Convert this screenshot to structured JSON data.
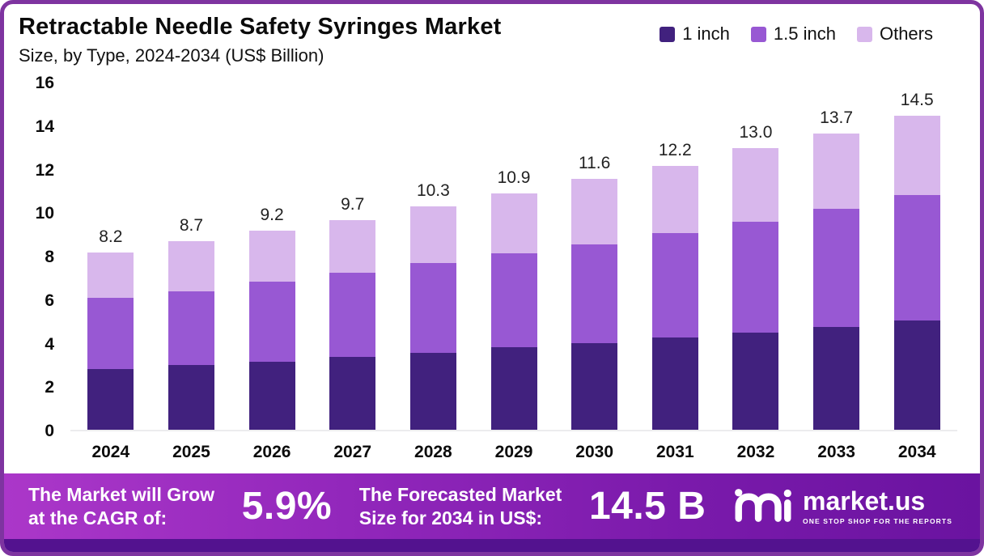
{
  "header": {
    "title": "Retractable Needle Safety Syringes Market",
    "subtitle": "Size, by Type, 2024-2034 (US$ Billion)"
  },
  "chart_data": {
    "type": "bar",
    "stacked": true,
    "title": "Retractable Needle Safety Syringes Market",
    "subtitle": "Size, by Type, 2024-2034 (US$ Billion)",
    "unit": "US$ Billion",
    "categories": [
      "2024",
      "2025",
      "2026",
      "2027",
      "2028",
      "2029",
      "2030",
      "2031",
      "2032",
      "2033",
      "2034"
    ],
    "series": [
      {
        "name": "1 inch",
        "color": "#41217E",
        "values": [
          2.8,
          3.0,
          3.15,
          3.35,
          3.55,
          3.8,
          4.0,
          4.25,
          4.5,
          4.75,
          5.05
        ]
      },
      {
        "name": "1.5 inch",
        "color": "#9858D3",
        "values": [
          3.3,
          3.4,
          3.7,
          3.9,
          4.15,
          4.35,
          4.55,
          4.85,
          5.1,
          5.45,
          5.8
        ]
      },
      {
        "name": "Others",
        "color": "#D8B7EC",
        "values": [
          2.1,
          2.3,
          2.35,
          2.45,
          2.6,
          2.75,
          3.05,
          3.1,
          3.4,
          3.5,
          3.65
        ]
      }
    ],
    "totals": [
      8.2,
      8.7,
      9.2,
      9.7,
      10.3,
      10.9,
      11.6,
      12.2,
      13.0,
      13.7,
      14.5
    ],
    "total_labels": [
      "8.2",
      "8.7",
      "9.2",
      "9.7",
      "10.3",
      "10.9",
      "11.6",
      "12.2",
      "13.0",
      "13.7",
      "14.5"
    ],
    "ylim": [
      0,
      16
    ],
    "yticks": [
      0,
      2,
      4,
      6,
      8,
      10,
      12,
      14,
      16
    ],
    "grid": false,
    "legend_position": "top-right"
  },
  "footer": {
    "cagr_label_line1": "The Market will Grow",
    "cagr_label_line2": "at the CAGR of:",
    "cagr_value": "5.9%",
    "forecast_label_line1": "The Forecasted Market",
    "forecast_label_line2": "Size for 2034 in US$:",
    "forecast_value": "14.5 B",
    "brand_name": "market.us",
    "brand_tagline": "ONE STOP SHOP FOR THE REPORTS"
  },
  "colors": {
    "border": "#7E34A0",
    "footer_gradient_start": "#AB37C9",
    "footer_gradient_end": "#6A13A0",
    "footer_strip": "#53128F",
    "series_1_inch": "#41217E",
    "series_1_5_inch": "#9858D3",
    "series_others": "#D8B7EC"
  }
}
